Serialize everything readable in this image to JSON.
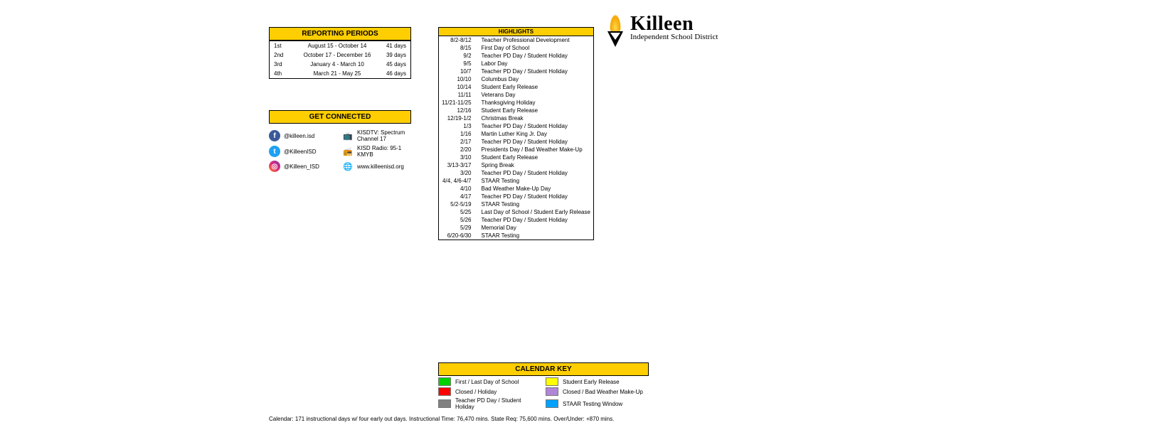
{
  "colors": {
    "header_bg": "#ffce00",
    "border": "#000000"
  },
  "reporting": {
    "title": "REPORTING PERIODS",
    "rows": [
      {
        "period": "1st",
        "range": "August 15 - October 14",
        "days": "41 days"
      },
      {
        "period": "2nd",
        "range": "October 17 - December 16",
        "days": "39 days"
      },
      {
        "period": "3rd",
        "range": "January 4 - March 10",
        "days": "45 days"
      },
      {
        "period": "4th",
        "range": "March 21 - May 25",
        "days": "46 days"
      }
    ]
  },
  "connected": {
    "title": "GET CONNECTED",
    "rows": [
      {
        "left_icon": "fb",
        "left": "@killeen.isd",
        "right_icon": "tv",
        "right": "KISDTV: Spectrum Channel 17"
      },
      {
        "left_icon": "tw",
        "left": "@KilleenISD",
        "right_icon": "radio",
        "right": "KISD Radio: 95-1 KMYB"
      },
      {
        "left_icon": "ig",
        "left": "@Killeen_ISD",
        "right_icon": "web",
        "right": "www.killeenisd.org"
      }
    ]
  },
  "highlights": {
    "title": "HIGHLIGHTS",
    "rows": [
      {
        "date": "8/2-8/12",
        "desc": "Teacher Professional Development"
      },
      {
        "date": "8/15",
        "desc": "First Day of School"
      },
      {
        "date": "9/2",
        "desc": "Teacher PD Day / Student Holiday"
      },
      {
        "date": "9/5",
        "desc": "Labor Day"
      },
      {
        "date": "10/7",
        "desc": "Teacher PD Day / Student Holiday"
      },
      {
        "date": "10/10",
        "desc": "Columbus Day"
      },
      {
        "date": "10/14",
        "desc": "Student Early Release"
      },
      {
        "date": "11/11",
        "desc": "Veterans Day"
      },
      {
        "date": "11/21-11/25",
        "desc": "Thanksgiving Holiday"
      },
      {
        "date": "12/16",
        "desc": "Student Early Release"
      },
      {
        "date": "12/19-1/2",
        "desc": "Christmas Break"
      },
      {
        "date": "1/3",
        "desc": "Teacher PD Day / Student Holiday"
      },
      {
        "date": "1/16",
        "desc": "Martin Luther King Jr. Day"
      },
      {
        "date": "2/17",
        "desc": "Teacher PD Day / Student Holiday"
      },
      {
        "date": "2/20",
        "desc": "Presidents Day / Bad Weather Make-Up"
      },
      {
        "date": "3/10",
        "desc": "Student Early Release"
      },
      {
        "date": "3/13-3/17",
        "desc": "Spring Break"
      },
      {
        "date": "3/20",
        "desc": "Teacher PD Day / Student Holiday"
      },
      {
        "date": "4/4, 4/6-4/7",
        "desc": "STAAR Testing"
      },
      {
        "date": "4/10",
        "desc": "Bad Weather Make-Up Day"
      },
      {
        "date": "4/17",
        "desc": "Teacher PD Day / Student Holiday"
      },
      {
        "date": "5/2-5/19",
        "desc": "STAAR Testing"
      },
      {
        "date": "5/25",
        "desc": "Last Day of School / Student Early Release"
      },
      {
        "date": "5/26",
        "desc": "Teacher PD Day / Student Holiday"
      },
      {
        "date": "5/29",
        "desc": "Memorial Day"
      },
      {
        "date": "6/20-6/30",
        "desc": "STAAR Testing"
      }
    ]
  },
  "logo": {
    "line1": "Killeen",
    "line2": "Independent School District"
  },
  "calkey": {
    "title": "CALENDAR KEY",
    "items": [
      {
        "color": "#00d200",
        "label": "First / Last Day of School"
      },
      {
        "color": "#ffff00",
        "label": "Student Early Release"
      },
      {
        "color": "#ff0000",
        "label": "Closed / Holiday"
      },
      {
        "color": "#b085d8",
        "label": "Closed / Bad Weather Make-Up"
      },
      {
        "color": "#808080",
        "label": "Teacher PD Day / Student Holiday"
      },
      {
        "color": "#00a2ff",
        "label": "STAAR Testing Window"
      }
    ]
  },
  "footer": "Calendar: 171 instructional days w/ four early out days.   Instructional Time: 76,470 mins.   State Req: 75,600 mins.   Over/Under:  +870 mins."
}
